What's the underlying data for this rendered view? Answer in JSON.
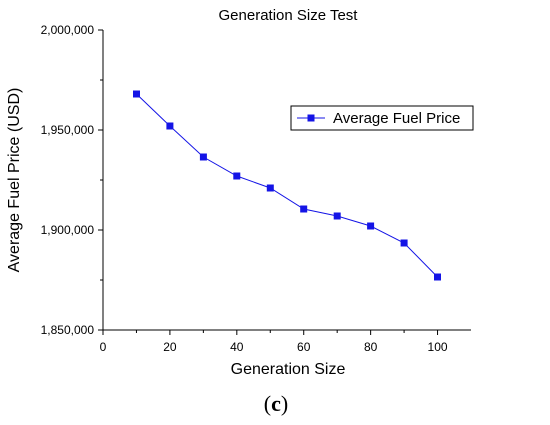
{
  "chart_data": {
    "type": "line",
    "title": "Generation Size Test",
    "xlabel": "Generation Size",
    "ylabel": "Average Fuel Price (USD)",
    "xlim": [
      0,
      110
    ],
    "ylim": [
      1850000,
      2000000
    ],
    "xticks": [
      0,
      20,
      40,
      60,
      80,
      100
    ],
    "xtick_labels": [
      "0",
      "20",
      "40",
      "60",
      "80",
      "100"
    ],
    "yticks": [
      1850000,
      1900000,
      1950000,
      2000000
    ],
    "ytick_labels": [
      "1,850,000",
      "1,900,000",
      "1,950,000",
      "2,000,000"
    ],
    "grid": false,
    "legend_position": "top-right",
    "series": [
      {
        "name": "Average Fuel Price",
        "color": "#1414e6",
        "marker": "square",
        "x": [
          10,
          20,
          30,
          40,
          50,
          60,
          70,
          80,
          90,
          100
        ],
        "y": [
          1968000,
          1952000,
          1936500,
          1927000,
          1921000,
          1910500,
          1907000,
          1902000,
          1893500,
          1876500
        ]
      }
    ]
  },
  "caption": {
    "open": "(",
    "letter": "c",
    "close": ")"
  }
}
